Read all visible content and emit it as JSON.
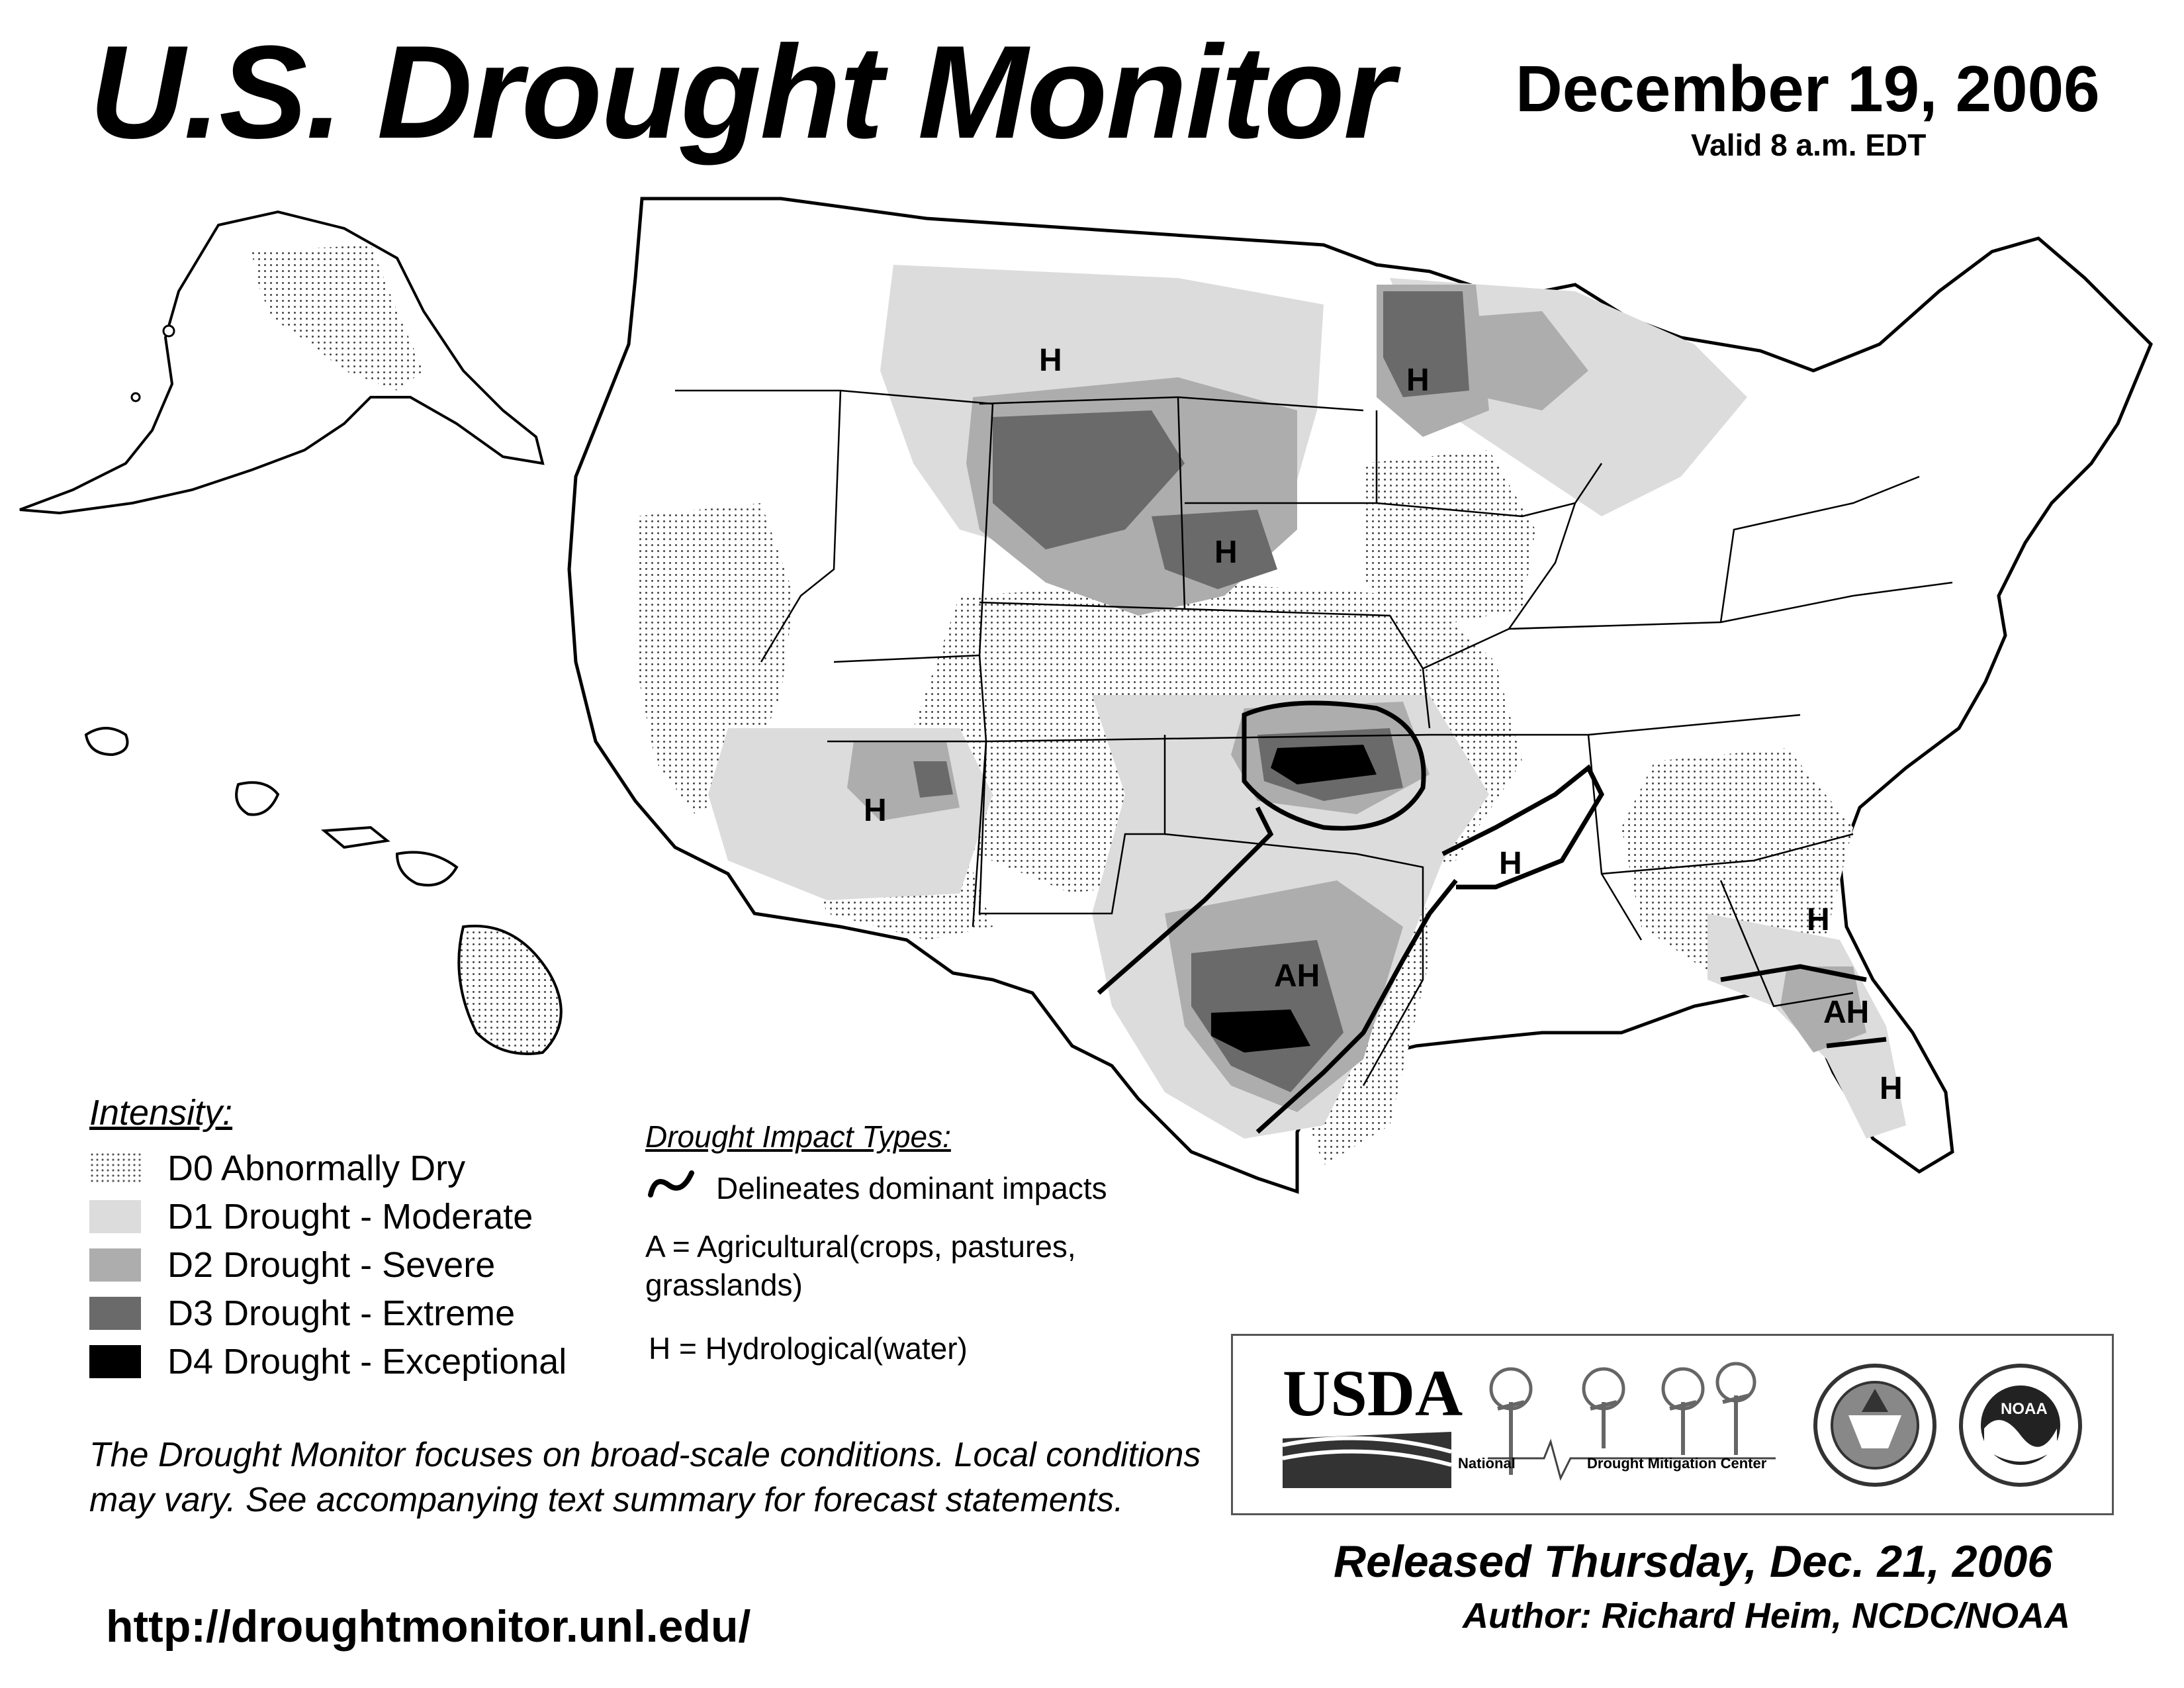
{
  "header": {
    "title": "U.S. Drought Monitor",
    "date": "December 19, 2006",
    "valid": "Valid 8 a.m. EDT"
  },
  "legend": {
    "title": "Intensity:",
    "items": [
      {
        "code": "D0",
        "label": "D0 Abnormally Dry",
        "color": "#ffffff"
      },
      {
        "code": "D1",
        "label": "D1 Drought - Moderate",
        "color": "#dcdcdc"
      },
      {
        "code": "D2",
        "label": "D2 Drought - Severe",
        "color": "#adadad"
      },
      {
        "code": "D3",
        "label": "D3 Drought - Extreme",
        "color": "#6a6a6a"
      },
      {
        "code": "D4",
        "label": "D4 Drought - Exceptional",
        "color": "#000000"
      }
    ]
  },
  "impacts": {
    "title": "Drought Impact Types:",
    "delineates": "Delineates dominant impacts",
    "agricultural": "A = Agricultural(crops, pastures, grasslands)",
    "hydrological": "H = Hydrological(water)"
  },
  "map_labels": {
    "h_montana": "H",
    "h_minnesota": "H",
    "h_nebraska": "H",
    "h_arizona": "H",
    "ah_texas": "AH",
    "h_arkansas": "H",
    "h_georgia": "H",
    "ah_florida": "AH",
    "h_florida": "H"
  },
  "note": "The Drought Monitor focuses on broad-scale conditions. Local conditions may vary. See accompanying text summary for forecast statements.",
  "url": "http://droughtmonitor.unl.edu/",
  "logos": {
    "usda": "USDA",
    "ndmc_national": "National",
    "ndmc_center": "Drought Mitigation Center",
    "noaa": "NOAA"
  },
  "released": "Released Thursday, Dec. 21, 2006",
  "author": "Author: Richard Heim, NCDC/NOAA"
}
